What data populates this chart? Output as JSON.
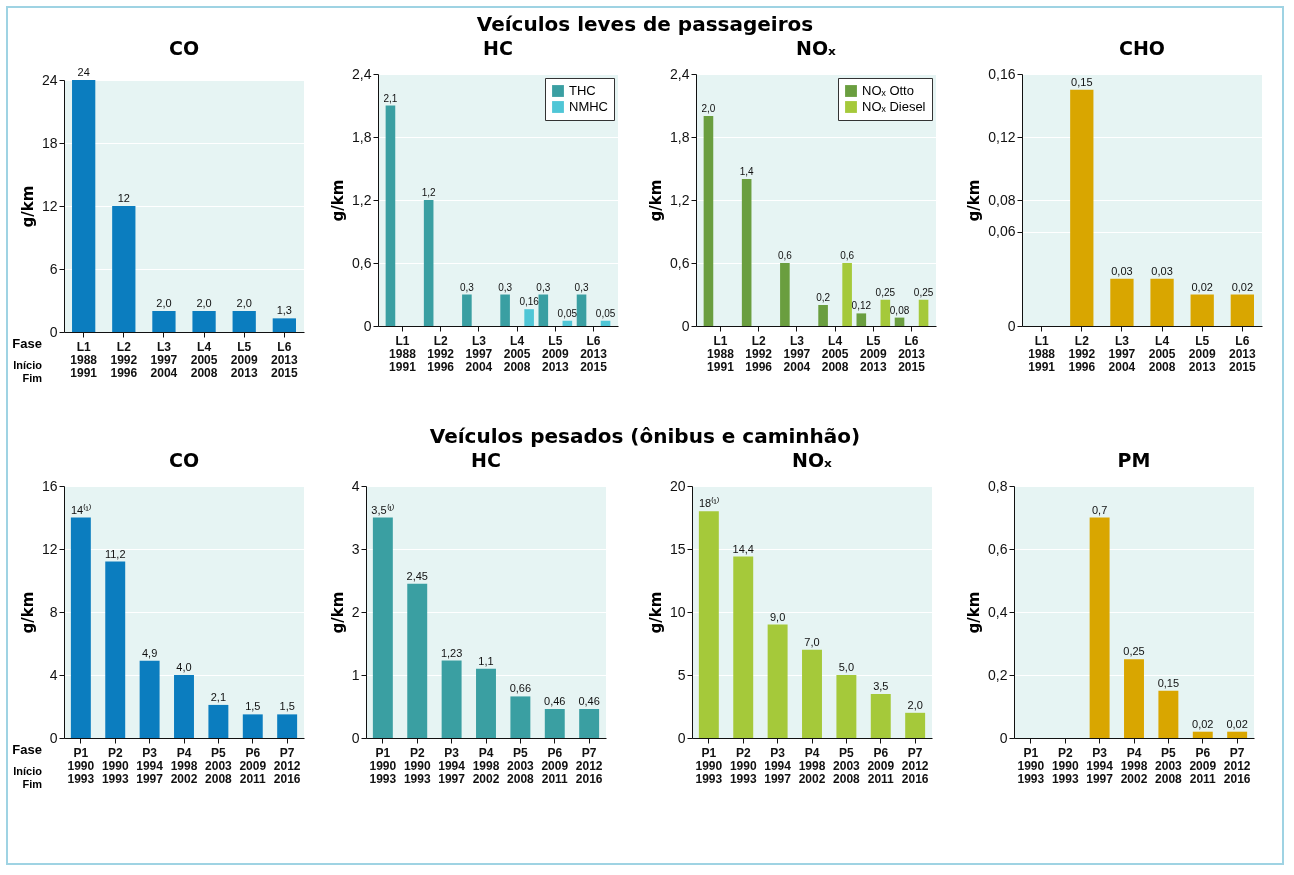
{
  "chart_data": [
    {
      "type": "bar",
      "title": "CO",
      "ylabel": "g/km",
      "annotations": [
        "Veículos leves de passageiros",
        "Fase",
        "Início",
        "Fim"
      ],
      "categories": [
        "L1\n1988\n1991",
        "L2\n1992\n1996",
        "L3\n1997\n2004",
        "L4\n2005\n2008",
        "L5\n2009\n2013",
        "L6\n2013\n2015"
      ],
      "values": [
        24,
        12,
        2.0,
        2.0,
        2.0,
        1.3
      ],
      "value_labels": [
        "24",
        "12",
        "2,0",
        "2,0",
        "2,0",
        "1,3"
      ],
      "color": "#0b7dbf",
      "ylim": [
        0,
        24
      ],
      "yticks": [
        0,
        6,
        12,
        18,
        24
      ],
      "grid": "y"
    },
    {
      "type": "bar",
      "title": "HC",
      "ylabel": "g/km",
      "categories": [
        "L1\n1988\n1991",
        "L2\n1992\n1996",
        "L3\n1997\n2004",
        "L4\n2005\n2008",
        "L5\n2009\n2013",
        "L6\n2013\n2015"
      ],
      "series": [
        {
          "name": "THC",
          "color": "#3a9fa2",
          "values": [
            2.1,
            1.2,
            0.3,
            0.3,
            0.3,
            0.3
          ],
          "value_labels": [
            "2,1",
            "1,2",
            "0,3",
            "0,3",
            "0,3",
            "0,3"
          ]
        },
        {
          "name": "NMHC",
          "color": "#4fc6d6",
          "values": [
            null,
            null,
            null,
            0.16,
            0.05,
            0.05
          ],
          "value_labels": [
            null,
            null,
            null,
            "0,16",
            "0,05",
            "0,05"
          ]
        }
      ],
      "ylim": [
        0,
        2.4
      ],
      "yticks": [
        0,
        {
          "value": 0.6,
          "label": "0,6"
        },
        {
          "value": 1.2,
          "label": "1,2"
        },
        {
          "value": 1.8,
          "label": "1,8"
        },
        {
          "value": 2.4,
          "label": "2,4"
        }
      ],
      "grid": "y",
      "legend": "top right"
    },
    {
      "type": "bar",
      "title": "NOₓ",
      "ylabel": "g/km",
      "categories": [
        "L1\n1988\n1991",
        "L2\n1992\n1996",
        "L3\n1997\n2004",
        "L4\n2005\n2008",
        "L5\n2009\n2013",
        "L6\n2013\n2015"
      ],
      "series": [
        {
          "name": "NOₓ Otto",
          "color": "#6a9e3f",
          "values": [
            2.0,
            1.4,
            0.6,
            0.2,
            0.12,
            0.08
          ],
          "value_labels": [
            "2,0",
            "1,4",
            "0,6",
            "0,2",
            "0,12",
            "0,08"
          ]
        },
        {
          "name": "NOₓ Diesel",
          "color": "#a5c93a",
          "values": [
            null,
            null,
            null,
            0.6,
            0.25,
            0.25
          ],
          "value_labels": [
            null,
            null,
            null,
            "0,6",
            "0,25",
            "0,25"
          ]
        }
      ],
      "ylim": [
        0,
        2.4
      ],
      "yticks": [
        0,
        {
          "value": 0.6,
          "label": "0,6"
        },
        {
          "value": 1.2,
          "label": "1,2"
        },
        {
          "value": 1.8,
          "label": "1,8"
        },
        {
          "value": 2.4,
          "label": "2,4"
        }
      ],
      "grid": "y",
      "legend": "top right"
    },
    {
      "type": "bar",
      "title": "CHO",
      "ylabel": "g/km",
      "categories": [
        "L1\n1988\n1991",
        "L2\n1992\n1996",
        "L3\n1997\n2004",
        "L4\n2005\n2008",
        "L5\n2009\n2013",
        "L6\n2013\n2015"
      ],
      "values": [
        null,
        0.15,
        0.03,
        0.03,
        0.02,
        0.02
      ],
      "value_labels": [
        null,
        "0,15",
        "0,03",
        "0,03",
        "0,02",
        "0,02"
      ],
      "color": "#d9a600",
      "ylim": [
        0,
        0.16
      ],
      "yticks": [
        0,
        {
          "value": 0.06,
          "label": "0,06"
        },
        {
          "value": 0.08,
          "label": "0,08"
        },
        {
          "value": 0.12,
          "label": "0,12"
        },
        {
          "value": 0.16,
          "label": "0,16"
        }
      ],
      "grid": "y"
    },
    {
      "type": "bar",
      "title": "CO",
      "ylabel": "g/km",
      "annotations": [
        "Veículos pesados (ônibus e caminhão)",
        "Fase",
        "Início",
        "Fim"
      ],
      "categories": [
        "P1\n1990\n1993",
        "P2\n1990\n1993",
        "P3\n1994\n1997",
        "P4\n1998\n2002",
        "P5\n2003\n2008",
        "P6\n2009\n2011",
        "P7\n2012\n2016"
      ],
      "values": [
        14,
        11.2,
        4.9,
        4.0,
        2.1,
        1.5,
        1.5
      ],
      "value_labels": [
        "14⁽¹⁾",
        "11,2",
        "4,9",
        "4,0",
        "2,1",
        "1,5",
        "1,5"
      ],
      "color": "#0b7dbf",
      "ylim": [
        0,
        16
      ],
      "yticks": [
        0,
        4,
        8,
        12,
        16
      ],
      "grid": "y"
    },
    {
      "type": "bar",
      "title": "HC",
      "ylabel": "g/km",
      "categories": [
        "P1\n1990\n1993",
        "P2\n1990\n1993",
        "P3\n1994\n1997",
        "P4\n1998\n2002",
        "P5\n2003\n2008",
        "P6\n2009\n2011",
        "P7\n2012\n2016"
      ],
      "values": [
        3.5,
        2.45,
        1.23,
        1.1,
        0.66,
        0.46,
        0.46
      ],
      "value_labels": [
        "3,5⁽¹⁾",
        "2,45",
        "1,23",
        "1,1",
        "0,66",
        "0,46",
        "0,46"
      ],
      "color": "#3a9fa2",
      "ylim": [
        0,
        4
      ],
      "yticks": [
        0,
        1,
        2,
        3,
        4
      ],
      "grid": "y"
    },
    {
      "type": "bar",
      "title": "NOₓ",
      "ylabel": "g/km",
      "categories": [
        "P1\n1990\n1993",
        "P2\n1990\n1993",
        "P3\n1994\n1997",
        "P4\n1998\n2002",
        "P5\n2003\n2008",
        "P6\n2009\n2011",
        "P7\n2012\n2016"
      ],
      "values": [
        18,
        14.4,
        9.0,
        7.0,
        5.0,
        3.5,
        2.0
      ],
      "value_labels": [
        "18⁽¹⁾",
        "14,4",
        "9,0",
        "7,0",
        "5,0",
        "3,5",
        "2,0"
      ],
      "color": "#a5c93a",
      "ylim": [
        0,
        20
      ],
      "yticks": [
        0,
        5,
        10,
        15,
        20
      ],
      "grid": "y"
    },
    {
      "type": "bar",
      "title": "PM",
      "ylabel": "g/km",
      "categories": [
        "P1\n1990\n1993",
        "P2\n1990\n1993",
        "P3\n1994\n1997",
        "P4\n1998\n2002",
        "P5\n2003\n2008",
        "P6\n2009\n2011",
        "P7\n2012\n2016"
      ],
      "values": [
        null,
        null,
        0.7,
        0.25,
        0.15,
        0.02,
        0.02
      ],
      "value_labels": [
        null,
        null,
        "0,7",
        "0,25",
        "0,15",
        "0,02",
        "0,02"
      ],
      "color": "#d9a600",
      "ylim": [
        0,
        0.8
      ],
      "yticks": [
        0,
        {
          "value": 0.2,
          "label": "0,2"
        },
        {
          "value": 0.4,
          "label": "0,4"
        },
        {
          "value": 0.6,
          "label": "0,6"
        },
        {
          "value": 0.8,
          "label": "0,8"
        }
      ],
      "grid": "y"
    }
  ]
}
